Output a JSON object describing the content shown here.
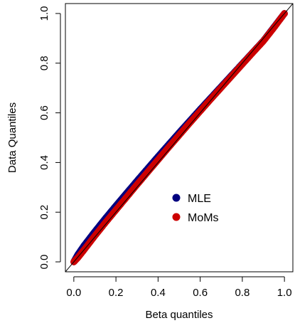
{
  "chart_data": {
    "type": "scatter",
    "title": "",
    "xlabel": "Beta quantiles",
    "ylabel": "Data Quantiles",
    "xlim": [
      -0.04,
      1.04
    ],
    "ylim": [
      -0.04,
      1.04
    ],
    "x_ticks": [
      0.0,
      0.2,
      0.4,
      0.6,
      0.8,
      1.0
    ],
    "y_ticks": [
      0.0,
      0.2,
      0.4,
      0.6,
      0.8,
      1.0
    ],
    "x_tick_labels": [
      "0.0",
      "0.2",
      "0.4",
      "0.6",
      "0.8",
      "1.0"
    ],
    "y_tick_labels": [
      "0.0",
      "0.2",
      "0.4",
      "0.6",
      "0.8",
      "1.0"
    ],
    "grid": false,
    "reference_line": {
      "slope": 1,
      "intercept": 0,
      "color": "#000000"
    },
    "legend": {
      "placement": "lower-right",
      "entries": [
        {
          "label": "MLE",
          "color": "#00007f"
        },
        {
          "label": "MoMs",
          "color": "#cc0000"
        }
      ]
    },
    "series": [
      {
        "name": "MLE",
        "color": "#00007f",
        "x": [
          0.0,
          0.02,
          0.05,
          0.1,
          0.15,
          0.2,
          0.25,
          0.3,
          0.35,
          0.4,
          0.45,
          0.5,
          0.55,
          0.6,
          0.65,
          0.7,
          0.75,
          0.8,
          0.85,
          0.9,
          0.95,
          1.0
        ],
        "y": [
          0.0,
          0.03,
          0.067,
          0.122,
          0.175,
          0.226,
          0.276,
          0.326,
          0.375,
          0.424,
          0.472,
          0.52,
          0.567,
          0.614,
          0.66,
          0.706,
          0.752,
          0.798,
          0.844,
          0.89,
          0.945,
          1.0
        ]
      },
      {
        "name": "MoMs",
        "color": "#cc0000",
        "x": [
          0.0,
          0.02,
          0.05,
          0.1,
          0.15,
          0.2,
          0.25,
          0.3,
          0.35,
          0.4,
          0.45,
          0.5,
          0.55,
          0.6,
          0.65,
          0.7,
          0.75,
          0.8,
          0.85,
          0.9,
          0.95,
          1.0
        ],
        "y": [
          0.0,
          0.018,
          0.05,
          0.105,
          0.158,
          0.209,
          0.26,
          0.311,
          0.361,
          0.411,
          0.461,
          0.51,
          0.559,
          0.607,
          0.655,
          0.702,
          0.749,
          0.796,
          0.843,
          0.889,
          0.943,
          1.0
        ]
      }
    ]
  }
}
